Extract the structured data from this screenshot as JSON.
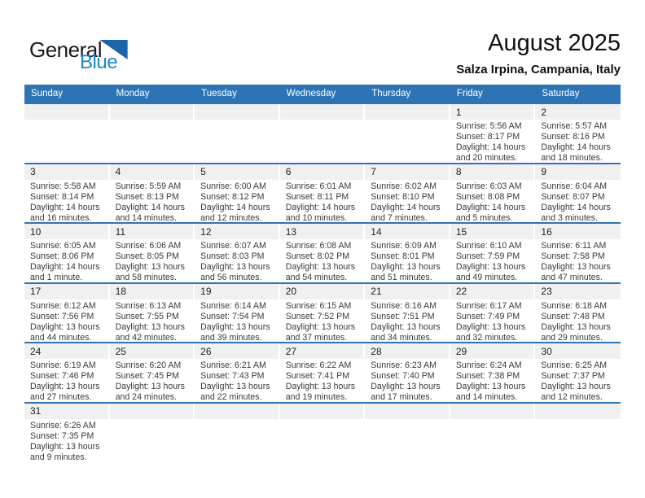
{
  "logo": {
    "part1": "General",
    "part2": "Blue",
    "part2_color": "#1B87C9",
    "triangle_color": "#1F63A8"
  },
  "header": {
    "title": "August 2025",
    "subtitle": "Salza Irpina, Campania, Italy"
  },
  "colors": {
    "header_bg": "#2E74B5",
    "row_line": "#2E74B5",
    "day_strip_bg": "#F0F0F0"
  },
  "weekdays": [
    "Sunday",
    "Monday",
    "Tuesday",
    "Wednesday",
    "Thursday",
    "Friday",
    "Saturday"
  ],
  "weeks": [
    [
      null,
      null,
      null,
      null,
      null,
      {
        "day": "1",
        "sunrise": "Sunrise: 5:56 AM",
        "sunset": "Sunset: 8:17 PM",
        "daylight1": "Daylight: 14 hours",
        "daylight2": "and 20 minutes."
      },
      {
        "day": "2",
        "sunrise": "Sunrise: 5:57 AM",
        "sunset": "Sunset: 8:16 PM",
        "daylight1": "Daylight: 14 hours",
        "daylight2": "and 18 minutes."
      }
    ],
    [
      {
        "day": "3",
        "sunrise": "Sunrise: 5:58 AM",
        "sunset": "Sunset: 8:14 PM",
        "daylight1": "Daylight: 14 hours",
        "daylight2": "and 16 minutes."
      },
      {
        "day": "4",
        "sunrise": "Sunrise: 5:59 AM",
        "sunset": "Sunset: 8:13 PM",
        "daylight1": "Daylight: 14 hours",
        "daylight2": "and 14 minutes."
      },
      {
        "day": "5",
        "sunrise": "Sunrise: 6:00 AM",
        "sunset": "Sunset: 8:12 PM",
        "daylight1": "Daylight: 14 hours",
        "daylight2": "and 12 minutes."
      },
      {
        "day": "6",
        "sunrise": "Sunrise: 6:01 AM",
        "sunset": "Sunset: 8:11 PM",
        "daylight1": "Daylight: 14 hours",
        "daylight2": "and 10 minutes."
      },
      {
        "day": "7",
        "sunrise": "Sunrise: 6:02 AM",
        "sunset": "Sunset: 8:10 PM",
        "daylight1": "Daylight: 14 hours",
        "daylight2": "and 7 minutes."
      },
      {
        "day": "8",
        "sunrise": "Sunrise: 6:03 AM",
        "sunset": "Sunset: 8:08 PM",
        "daylight1": "Daylight: 14 hours",
        "daylight2": "and 5 minutes."
      },
      {
        "day": "9",
        "sunrise": "Sunrise: 6:04 AM",
        "sunset": "Sunset: 8:07 PM",
        "daylight1": "Daylight: 14 hours",
        "daylight2": "and 3 minutes."
      }
    ],
    [
      {
        "day": "10",
        "sunrise": "Sunrise: 6:05 AM",
        "sunset": "Sunset: 8:06 PM",
        "daylight1": "Daylight: 14 hours",
        "daylight2": "and 1 minute."
      },
      {
        "day": "11",
        "sunrise": "Sunrise: 6:06 AM",
        "sunset": "Sunset: 8:05 PM",
        "daylight1": "Daylight: 13 hours",
        "daylight2": "and 58 minutes."
      },
      {
        "day": "12",
        "sunrise": "Sunrise: 6:07 AM",
        "sunset": "Sunset: 8:03 PM",
        "daylight1": "Daylight: 13 hours",
        "daylight2": "and 56 minutes."
      },
      {
        "day": "13",
        "sunrise": "Sunrise: 6:08 AM",
        "sunset": "Sunset: 8:02 PM",
        "daylight1": "Daylight: 13 hours",
        "daylight2": "and 54 minutes."
      },
      {
        "day": "14",
        "sunrise": "Sunrise: 6:09 AM",
        "sunset": "Sunset: 8:01 PM",
        "daylight1": "Daylight: 13 hours",
        "daylight2": "and 51 minutes."
      },
      {
        "day": "15",
        "sunrise": "Sunrise: 6:10 AM",
        "sunset": "Sunset: 7:59 PM",
        "daylight1": "Daylight: 13 hours",
        "daylight2": "and 49 minutes."
      },
      {
        "day": "16",
        "sunrise": "Sunrise: 6:11 AM",
        "sunset": "Sunset: 7:58 PM",
        "daylight1": "Daylight: 13 hours",
        "daylight2": "and 47 minutes."
      }
    ],
    [
      {
        "day": "17",
        "sunrise": "Sunrise: 6:12 AM",
        "sunset": "Sunset: 7:56 PM",
        "daylight1": "Daylight: 13 hours",
        "daylight2": "and 44 minutes."
      },
      {
        "day": "18",
        "sunrise": "Sunrise: 6:13 AM",
        "sunset": "Sunset: 7:55 PM",
        "daylight1": "Daylight: 13 hours",
        "daylight2": "and 42 minutes."
      },
      {
        "day": "19",
        "sunrise": "Sunrise: 6:14 AM",
        "sunset": "Sunset: 7:54 PM",
        "daylight1": "Daylight: 13 hours",
        "daylight2": "and 39 minutes."
      },
      {
        "day": "20",
        "sunrise": "Sunrise: 6:15 AM",
        "sunset": "Sunset: 7:52 PM",
        "daylight1": "Daylight: 13 hours",
        "daylight2": "and 37 minutes."
      },
      {
        "day": "21",
        "sunrise": "Sunrise: 6:16 AM",
        "sunset": "Sunset: 7:51 PM",
        "daylight1": "Daylight: 13 hours",
        "daylight2": "and 34 minutes."
      },
      {
        "day": "22",
        "sunrise": "Sunrise: 6:17 AM",
        "sunset": "Sunset: 7:49 PM",
        "daylight1": "Daylight: 13 hours",
        "daylight2": "and 32 minutes."
      },
      {
        "day": "23",
        "sunrise": "Sunrise: 6:18 AM",
        "sunset": "Sunset: 7:48 PM",
        "daylight1": "Daylight: 13 hours",
        "daylight2": "and 29 minutes."
      }
    ],
    [
      {
        "day": "24",
        "sunrise": "Sunrise: 6:19 AM",
        "sunset": "Sunset: 7:46 PM",
        "daylight1": "Daylight: 13 hours",
        "daylight2": "and 27 minutes."
      },
      {
        "day": "25",
        "sunrise": "Sunrise: 6:20 AM",
        "sunset": "Sunset: 7:45 PM",
        "daylight1": "Daylight: 13 hours",
        "daylight2": "and 24 minutes."
      },
      {
        "day": "26",
        "sunrise": "Sunrise: 6:21 AM",
        "sunset": "Sunset: 7:43 PM",
        "daylight1": "Daylight: 13 hours",
        "daylight2": "and 22 minutes."
      },
      {
        "day": "27",
        "sunrise": "Sunrise: 6:22 AM",
        "sunset": "Sunset: 7:41 PM",
        "daylight1": "Daylight: 13 hours",
        "daylight2": "and 19 minutes."
      },
      {
        "day": "28",
        "sunrise": "Sunrise: 6:23 AM",
        "sunset": "Sunset: 7:40 PM",
        "daylight1": "Daylight: 13 hours",
        "daylight2": "and 17 minutes."
      },
      {
        "day": "29",
        "sunrise": "Sunrise: 6:24 AM",
        "sunset": "Sunset: 7:38 PM",
        "daylight1": "Daylight: 13 hours",
        "daylight2": "and 14 minutes."
      },
      {
        "day": "30",
        "sunrise": "Sunrise: 6:25 AM",
        "sunset": "Sunset: 7:37 PM",
        "daylight1": "Daylight: 13 hours",
        "daylight2": "and 12 minutes."
      }
    ],
    [
      {
        "day": "31",
        "sunrise": "Sunrise: 6:26 AM",
        "sunset": "Sunset: 7:35 PM",
        "daylight1": "Daylight: 13 hours",
        "daylight2": "and 9 minutes."
      },
      null,
      null,
      null,
      null,
      null,
      null
    ]
  ]
}
